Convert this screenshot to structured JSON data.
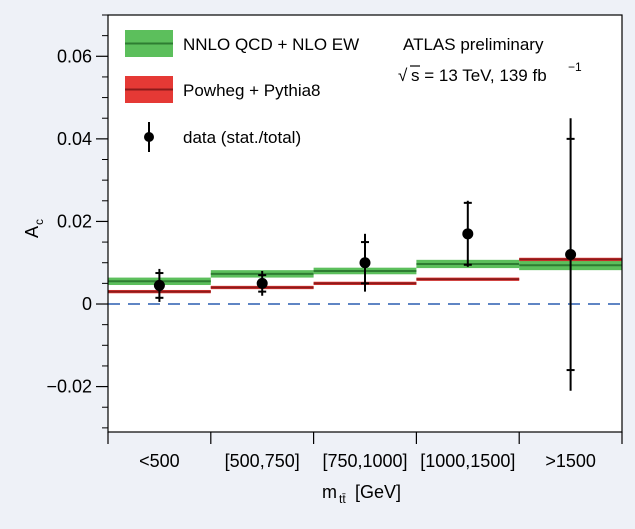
{
  "chart_data": {
    "type": "binned-step-with-points",
    "categories": [
      "<500",
      "[500,750]",
      "[750,1000]",
      "[1000,1500]",
      ">1500"
    ],
    "xlabel_main": "m",
    "xlabel_sub": "tt̄",
    "xlabel_unit": "[GeV]",
    "ylabel_main": "A",
    "ylabel_sub": "c",
    "ylim": [
      -0.031,
      0.07
    ],
    "yticks": [
      -0.02,
      0,
      0.02,
      0.04,
      0.06
    ],
    "ytick_labels": [
      "−0.02",
      "0",
      "0.02",
      "0.04",
      "0.06"
    ],
    "reference_line": 0,
    "series": [
      {
        "name": "NNLO QCD + NLO EW",
        "kind": "band",
        "line_color": "#2e7d32",
        "band_color": "#5cbf5c",
        "values": [
          0.0055,
          0.0073,
          0.008,
          0.0097,
          0.0094
        ],
        "band_half_width": [
          0.0009,
          0.0009,
          0.0008,
          0.001,
          0.0012
        ]
      },
      {
        "name": "Powheg + Pythia8",
        "kind": "band",
        "line_color": "#8b1a1a",
        "band_color": "#e53935",
        "values": [
          0.003,
          0.004,
          0.005,
          0.006,
          0.0108
        ],
        "band_half_width": [
          0.0004,
          0.0004,
          0.0004,
          0.0004,
          0.0004
        ]
      },
      {
        "name": "data (stat./total)",
        "kind": "points",
        "color": "#000000",
        "values": [
          0.0045,
          0.005,
          0.01,
          0.017,
          0.012
        ],
        "stat_err": [
          0.003,
          0.002,
          0.005,
          0.0075,
          0.028
        ],
        "total_err": [
          0.004,
          0.003,
          0.007,
          0.008,
          0.033
        ]
      }
    ],
    "annotations": {
      "experiment": "ATLAS preliminary",
      "sqrt_symbol": "√",
      "energy_label": "s = 13 TeV, 139 fb",
      "energy_sup": "−1"
    }
  }
}
